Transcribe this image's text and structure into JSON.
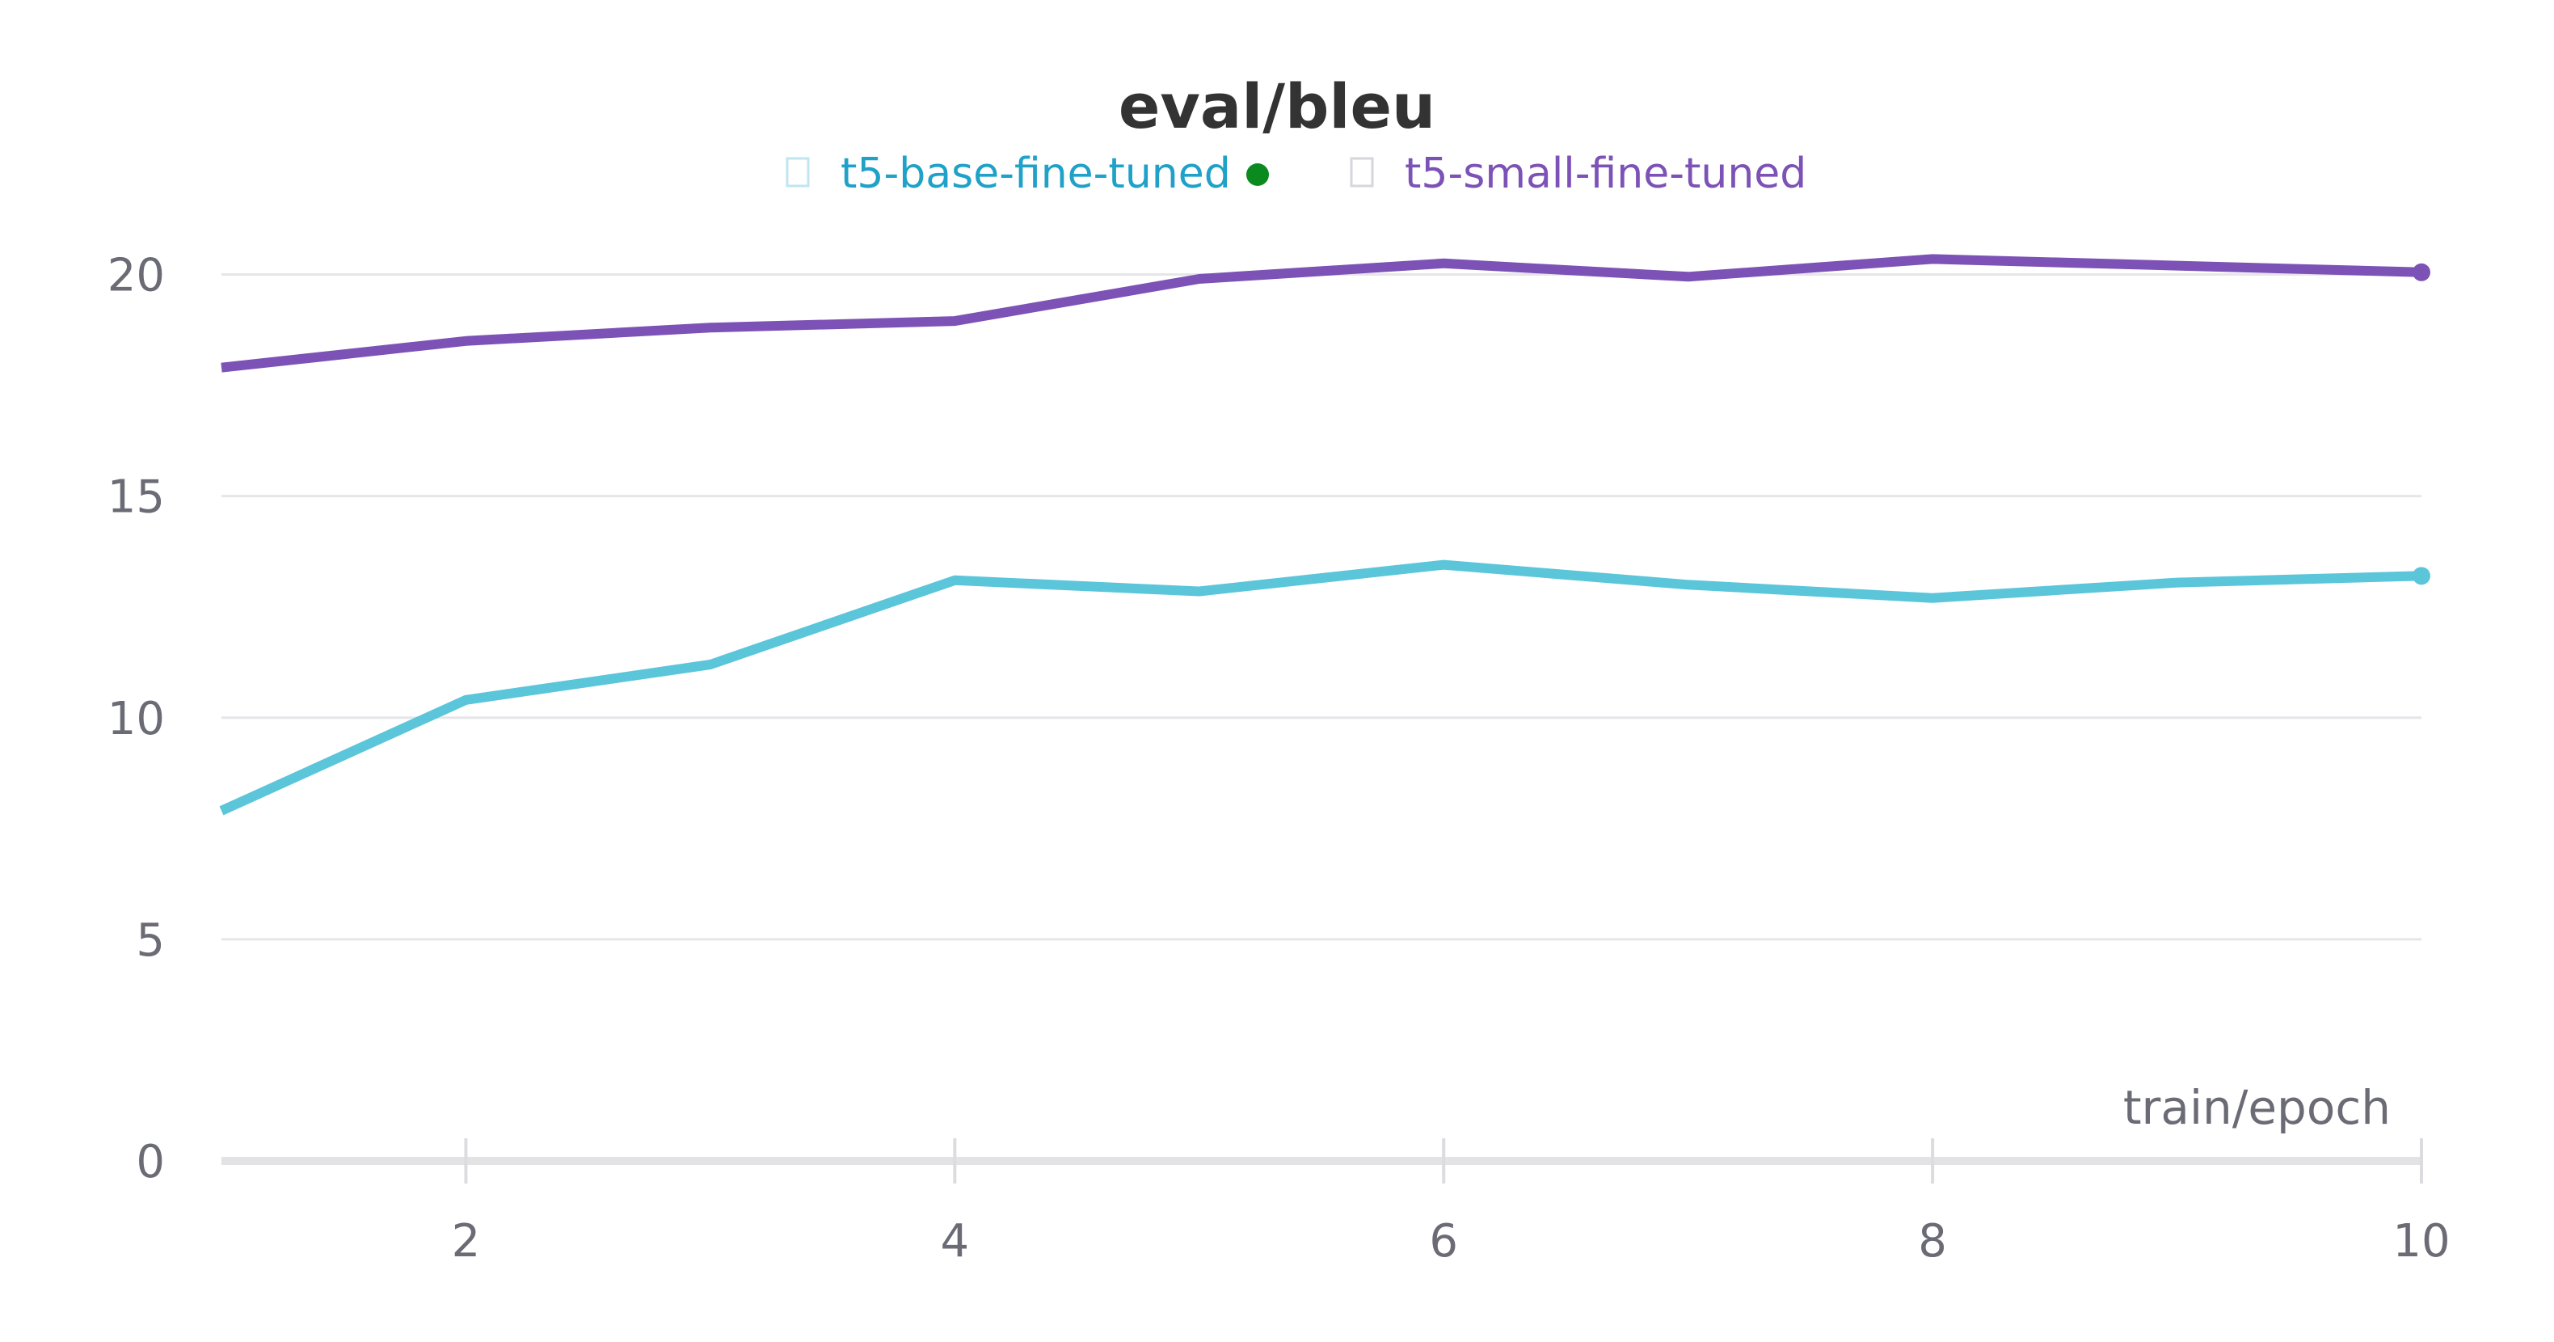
{
  "chart_data": {
    "type": "line",
    "title": "eval/bleu",
    "xlabel": "train/epoch",
    "ylabel": "",
    "xlim": [
      1,
      10
    ],
    "ylim": [
      0,
      20
    ],
    "x_ticks": [
      2,
      4,
      6,
      8,
      10
    ],
    "y_ticks": [
      0,
      5,
      10,
      15,
      20
    ],
    "grid": true,
    "legend_position": "top-center",
    "series": [
      {
        "name": "t5-base-fine-tuned",
        "color": "#5bc5da",
        "label_color": "#1fa1c8",
        "marker_color": "#0a8a1f",
        "x": [
          1,
          2,
          3,
          4,
          5,
          6,
          7,
          8,
          9,
          10
        ],
        "y": [
          7.9,
          10.4,
          11.2,
          13.1,
          12.85,
          13.45,
          13.0,
          12.7,
          13.05,
          13.2
        ]
      },
      {
        "name": "t5-small-fine-tuned",
        "color": "#7d52b6",
        "label_color": "#7d52b6",
        "marker_color": "",
        "x": [
          1,
          2,
          3,
          4,
          5,
          6,
          7,
          8,
          9,
          10
        ],
        "y": [
          17.9,
          18.5,
          18.8,
          18.95,
          19.9,
          20.25,
          19.95,
          20.35,
          20.2,
          20.05
        ]
      }
    ]
  }
}
